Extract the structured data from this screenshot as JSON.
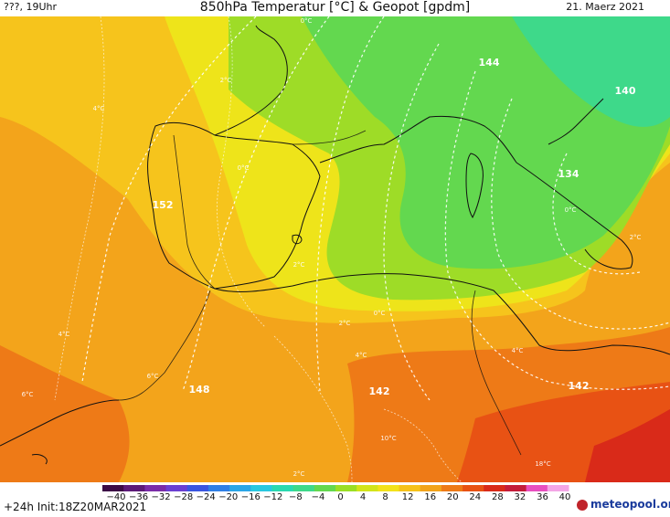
{
  "header": {
    "left": "???, 19Uhr",
    "title": "850hPa Temperatur [°C] & Geopot [gpdm]",
    "date": "21. Maerz 2021"
  },
  "footer": {
    "init": "+24h Init:18Z20MAR2021",
    "brand": "meteopool.org"
  },
  "colorbar": {
    "ticks": [
      "−40",
      "−36",
      "−32",
      "−28",
      "−24",
      "−20",
      "−16",
      "−12",
      "−8",
      "−4",
      "0",
      "4",
      "8",
      "12",
      "16",
      "20",
      "24",
      "28",
      "32",
      "36",
      "40"
    ],
    "colors": [
      "#3c0a46",
      "#5c1a78",
      "#7a2ca8",
      "#6a3fd2",
      "#3a55e0",
      "#2f7fe6",
      "#2aa6e8",
      "#28c8e0",
      "#2ad9b0",
      "#3ed98a",
      "#63d84f",
      "#9ade25",
      "#d2e41a",
      "#f3e21a",
      "#f6c21a",
      "#f2a31a",
      "#ee7a17",
      "#e85214",
      "#d92a19",
      "#c41c3a",
      "#e84fbf",
      "#f4a6e6"
    ]
  },
  "geopotential_labels": {
    "g152": "152",
    "g148": "148",
    "g144": "144",
    "g142a": "142",
    "g142b": "142",
    "g140": "140",
    "g134": "134"
  },
  "temperature_labels": {
    "t0a": "0°C",
    "t0b": "0°C",
    "t0c": "0°C",
    "t0d": "0°C",
    "t2a": "2°C",
    "t2b": "2°C",
    "t2c": "2°C",
    "t2d": "2°C",
    "t4a": "4°C",
    "t4b": "4°C",
    "t4c": "4°C",
    "t4d": "4°C",
    "t6a": "6°C",
    "t6b": "6°C",
    "t10": "10°C",
    "t18": "18°C",
    "t2e": "2°C"
  }
}
